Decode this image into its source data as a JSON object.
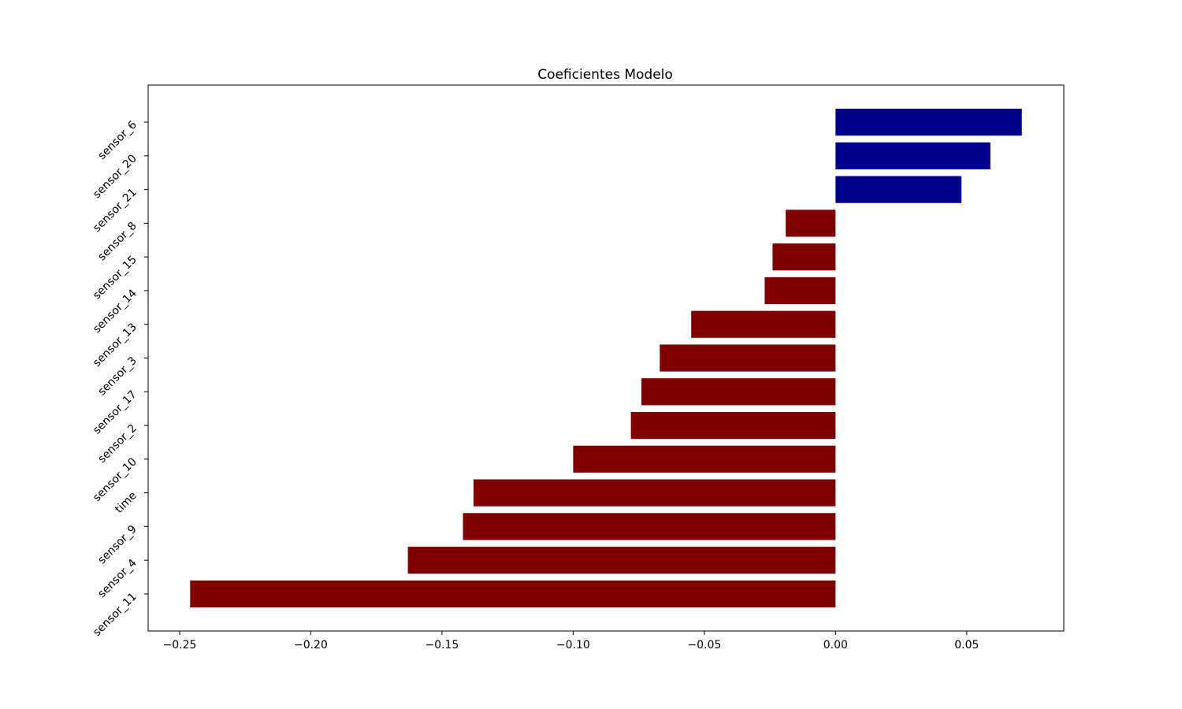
{
  "chart_data": {
    "type": "bar",
    "orientation": "horizontal",
    "title": "Coeficientes Modelo",
    "xlabel": "",
    "ylabel": "",
    "categories": [
      "sensor_6",
      "sensor_20",
      "sensor_21",
      "sensor_8",
      "sensor_15",
      "sensor_14",
      "sensor_13",
      "sensor_3",
      "sensor_17",
      "sensor_2",
      "sensor_10",
      "time",
      "sensor_9",
      "sensor_4",
      "sensor_11"
    ],
    "values": [
      0.071,
      0.059,
      0.048,
      -0.019,
      -0.024,
      -0.027,
      -0.055,
      -0.067,
      -0.074,
      -0.078,
      -0.1,
      -0.138,
      -0.142,
      -0.163,
      -0.246
    ],
    "xlim": [
      -0.262,
      0.087
    ],
    "xticks": [
      -0.25,
      -0.2,
      -0.15,
      -0.1,
      -0.05,
      0.0,
      0.05
    ],
    "xtick_labels": [
      "−0.25",
      "−0.20",
      "−0.15",
      "−0.10",
      "−0.05",
      "0.00",
      "0.05"
    ],
    "positive_color": "#00008b",
    "negative_color": "#800000",
    "grid": false,
    "legend": "none"
  }
}
